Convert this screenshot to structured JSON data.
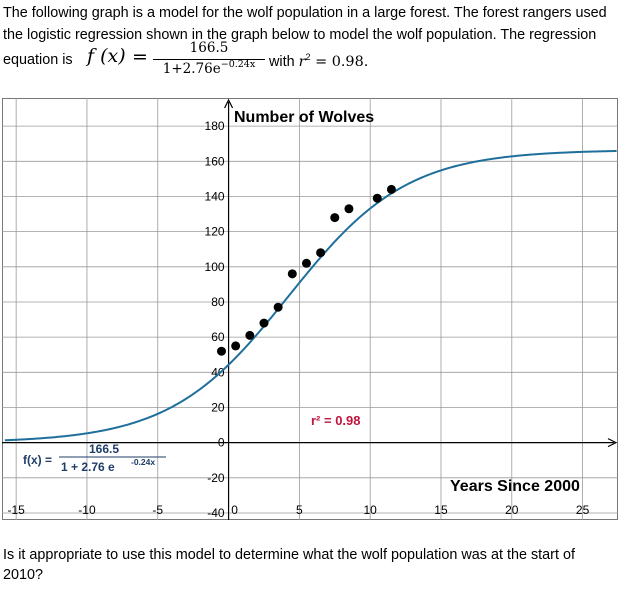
{
  "intro": {
    "line1": "The following graph is a model for the wolf population in a large forest. The forest rangers used",
    "line2": "the logistic regression shown in the graph below to model the wolf population. The regression",
    "equation_lead": "equation is",
    "fx": "f (x)",
    "equals": "=",
    "numerator": "166.5",
    "denominator_base": "1+2.76e",
    "denominator_exp": "−0.24x",
    "with_text": "with",
    "r2_symbol": "r",
    "r2_exponent": "2",
    "r2_value": " =  0.98."
  },
  "question": {
    "line1": "Is it appropriate to use this model to determine what the wolf population was at the start of",
    "line2": "2010?"
  },
  "colors": {
    "curve": "#1f6f9c",
    "points": "#000000",
    "r2_label": "#c0143c",
    "grid": "#9a9a9a"
  },
  "chart_data": {
    "type": "scatter",
    "title": "Number of Wolves",
    "xlabel": "Years Since 2000",
    "ylabel": "",
    "xlim": [
      -16,
      27.5
    ],
    "ylim": [
      -44,
      196
    ],
    "x_ticks": [
      -15,
      -10,
      -5,
      0,
      5,
      10,
      15,
      20,
      25
    ],
    "x_tick_labels": [
      "-15",
      "-10",
      "-5",
      "0",
      "5",
      "10",
      "15",
      "20",
      "25"
    ],
    "y_ticks": [
      -40,
      -20,
      0,
      20,
      40,
      60,
      80,
      100,
      120,
      140,
      160,
      180
    ],
    "y_tick_labels": [
      "-40",
      "-20",
      "0",
      "20",
      "40",
      "60",
      "80",
      "100",
      "120",
      "140",
      "160",
      "180"
    ],
    "grid": true,
    "points": [
      {
        "x": -0.5,
        "y": 52
      },
      {
        "x": 0.5,
        "y": 55
      },
      {
        "x": 1.5,
        "y": 61
      },
      {
        "x": 2.5,
        "y": 68
      },
      {
        "x": 3.5,
        "y": 77
      },
      {
        "x": 4.5,
        "y": 96
      },
      {
        "x": 5.5,
        "y": 102
      },
      {
        "x": 6.5,
        "y": 108
      },
      {
        "x": 7.5,
        "y": 128
      },
      {
        "x": 8.5,
        "y": 133
      },
      {
        "x": 10.5,
        "y": 139
      },
      {
        "x": 11.5,
        "y": 144
      }
    ],
    "model": {
      "L": 166.5,
      "a": 2.76,
      "b": 0.24
    },
    "r2_label": "r² = 0.98",
    "equation_label": {
      "lhs": "f(x) =",
      "numerator": "166.5",
      "denominator": "1 + 2.76 e",
      "exponent": "-0.24x"
    }
  }
}
